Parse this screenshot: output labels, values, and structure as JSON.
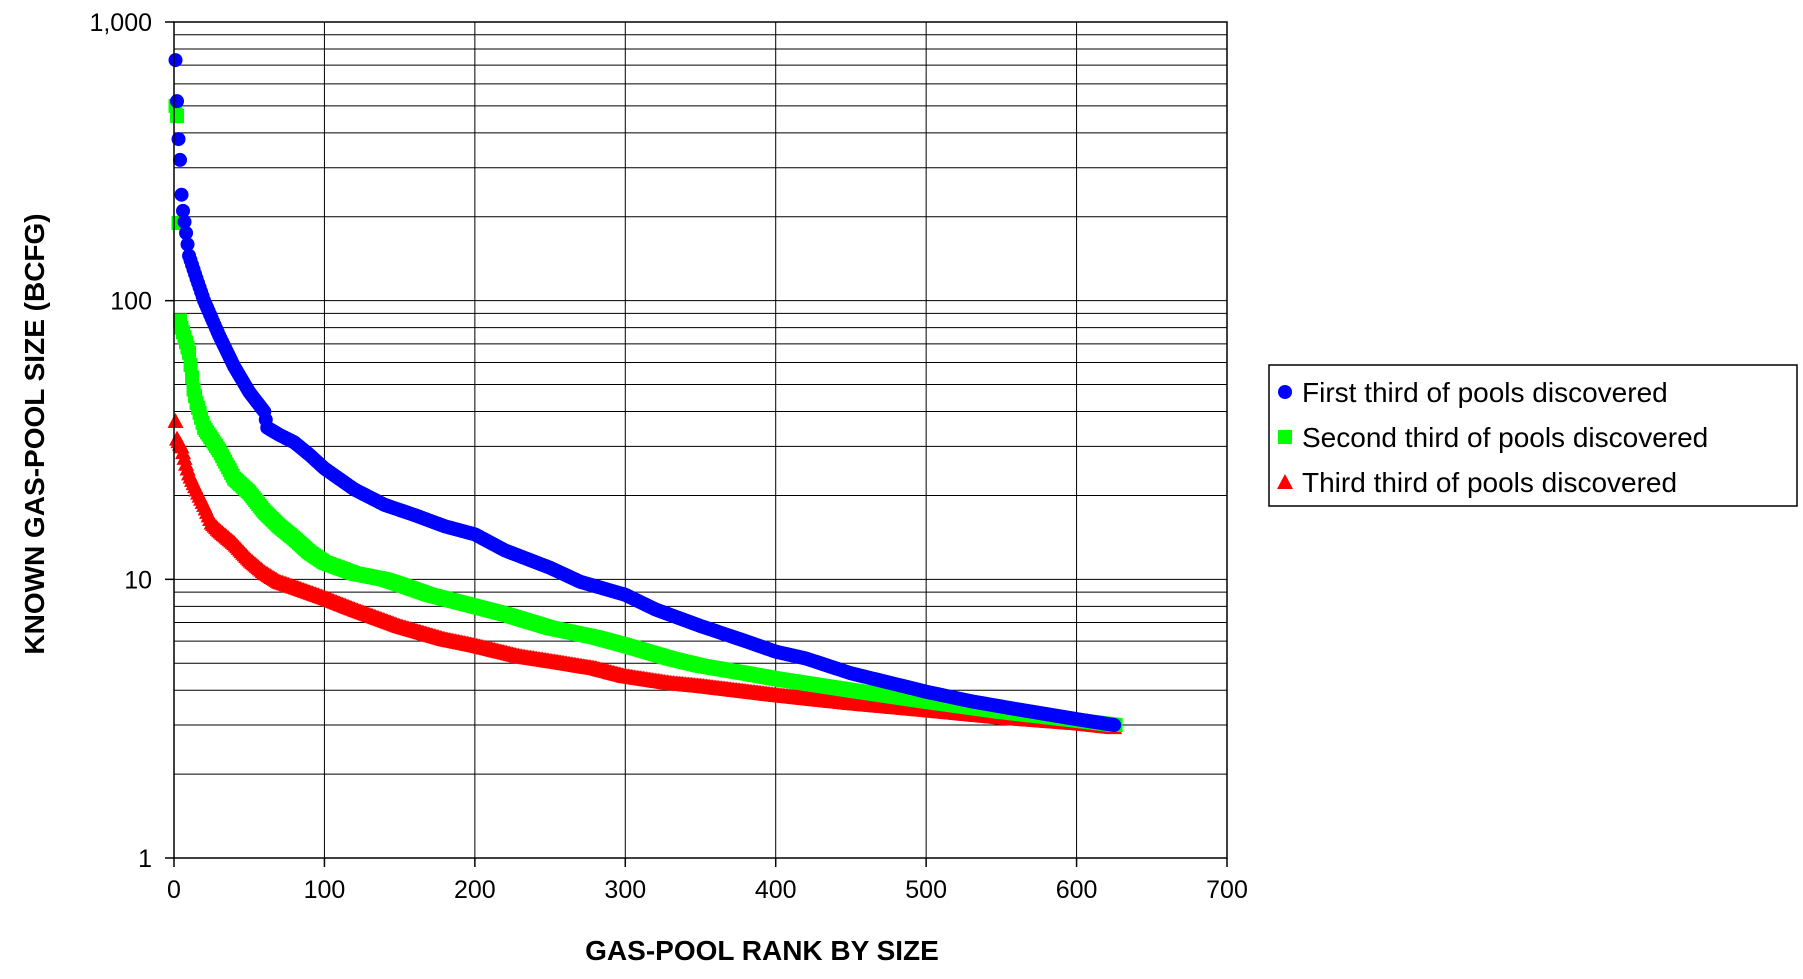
{
  "chart_data": {
    "type": "scatter",
    "title": "",
    "xlabel": "GAS-POOL RANK BY SIZE",
    "ylabel": "KNOWN GAS-POOL SIZE (BCFG)",
    "xlim": [
      0,
      700
    ],
    "ylim": [
      1,
      1000
    ],
    "y_scale": "log",
    "grid": true,
    "legend_position": "right",
    "x_ticks": [
      0,
      100,
      200,
      300,
      400,
      500,
      600,
      700
    ],
    "x_tick_labels": [
      "0",
      "100",
      "200",
      "300",
      "400",
      "500",
      "600",
      "700"
    ],
    "y_ticks": [
      1,
      10,
      100,
      1000
    ],
    "y_tick_labels": [
      "1",
      "10",
      "100",
      "1,000"
    ],
    "series": [
      {
        "name": "First third of pools discovered",
        "color": "#0000ff",
        "marker": "circle",
        "anchors": [
          [
            1,
            730
          ],
          [
            2,
            520
          ],
          [
            3,
            380
          ],
          [
            4,
            320
          ],
          [
            5,
            240
          ],
          [
            6,
            210
          ],
          [
            8,
            175
          ],
          [
            10,
            145
          ],
          [
            15,
            120
          ],
          [
            20,
            100
          ],
          [
            30,
            75
          ],
          [
            40,
            58
          ],
          [
            50,
            47
          ],
          [
            60,
            40
          ],
          [
            62,
            35
          ],
          [
            70,
            33
          ],
          [
            80,
            31
          ],
          [
            90,
            28
          ],
          [
            100,
            25
          ],
          [
            120,
            21
          ],
          [
            140,
            18.5
          ],
          [
            160,
            17
          ],
          [
            180,
            15.5
          ],
          [
            200,
            14.5
          ],
          [
            220,
            12.7
          ],
          [
            250,
            11
          ],
          [
            270,
            9.8
          ],
          [
            300,
            8.8
          ],
          [
            320,
            7.8
          ],
          [
            350,
            6.8
          ],
          [
            380,
            6.0
          ],
          [
            400,
            5.5
          ],
          [
            420,
            5.2
          ],
          [
            450,
            4.6
          ],
          [
            480,
            4.2
          ],
          [
            500,
            3.95
          ],
          [
            530,
            3.65
          ],
          [
            560,
            3.42
          ],
          [
            600,
            3.15
          ],
          [
            625,
            3.0
          ]
        ],
        "count": 625
      },
      {
        "name": "Second third of pools discovered",
        "color": "#00ff00",
        "marker": "square",
        "anchors": [
          [
            1,
            500
          ],
          [
            2,
            460
          ],
          [
            3,
            190
          ],
          [
            4,
            85
          ],
          [
            5,
            80
          ],
          [
            7,
            74
          ],
          [
            10,
            65
          ],
          [
            13,
            48
          ],
          [
            15,
            43
          ],
          [
            20,
            35
          ],
          [
            30,
            29
          ],
          [
            40,
            23
          ],
          [
            50,
            20.5
          ],
          [
            60,
            17.5
          ],
          [
            70,
            15.5
          ],
          [
            80,
            14
          ],
          [
            90,
            12.5
          ],
          [
            100,
            11.5
          ],
          [
            120,
            10.5
          ],
          [
            140,
            10
          ],
          [
            150,
            9.6
          ],
          [
            170,
            8.8
          ],
          [
            200,
            8.0
          ],
          [
            220,
            7.5
          ],
          [
            250,
            6.7
          ],
          [
            280,
            6.2
          ],
          [
            300,
            5.8
          ],
          [
            330,
            5.2
          ],
          [
            350,
            4.9
          ],
          [
            380,
            4.6
          ],
          [
            400,
            4.4
          ],
          [
            450,
            4.0
          ],
          [
            500,
            3.65
          ],
          [
            550,
            3.35
          ],
          [
            600,
            3.12
          ],
          [
            626,
            3.0
          ]
        ],
        "count": 626
      },
      {
        "name": "Third third of pools discovered",
        "color": "#ff0000",
        "marker": "triangle",
        "anchors": [
          [
            1,
            37
          ],
          [
            2,
            32
          ],
          [
            5,
            30
          ],
          [
            8,
            26
          ],
          [
            10,
            24
          ],
          [
            15,
            21
          ],
          [
            20,
            18.5
          ],
          [
            25,
            16
          ],
          [
            30,
            15
          ],
          [
            40,
            13.5
          ],
          [
            50,
            11.8
          ],
          [
            60,
            10.6
          ],
          [
            70,
            9.8
          ],
          [
            80,
            9.4
          ],
          [
            100,
            8.6
          ],
          [
            120,
            7.8
          ],
          [
            150,
            6.8
          ],
          [
            180,
            6.1
          ],
          [
            200,
            5.8
          ],
          [
            230,
            5.3
          ],
          [
            250,
            5.1
          ],
          [
            280,
            4.8
          ],
          [
            300,
            4.5
          ],
          [
            330,
            4.25
          ],
          [
            350,
            4.15
          ],
          [
            400,
            3.85
          ],
          [
            450,
            3.6
          ],
          [
            500,
            3.4
          ],
          [
            550,
            3.2
          ],
          [
            600,
            3.05
          ],
          [
            625,
            2.95
          ]
        ],
        "count": 625
      }
    ]
  }
}
